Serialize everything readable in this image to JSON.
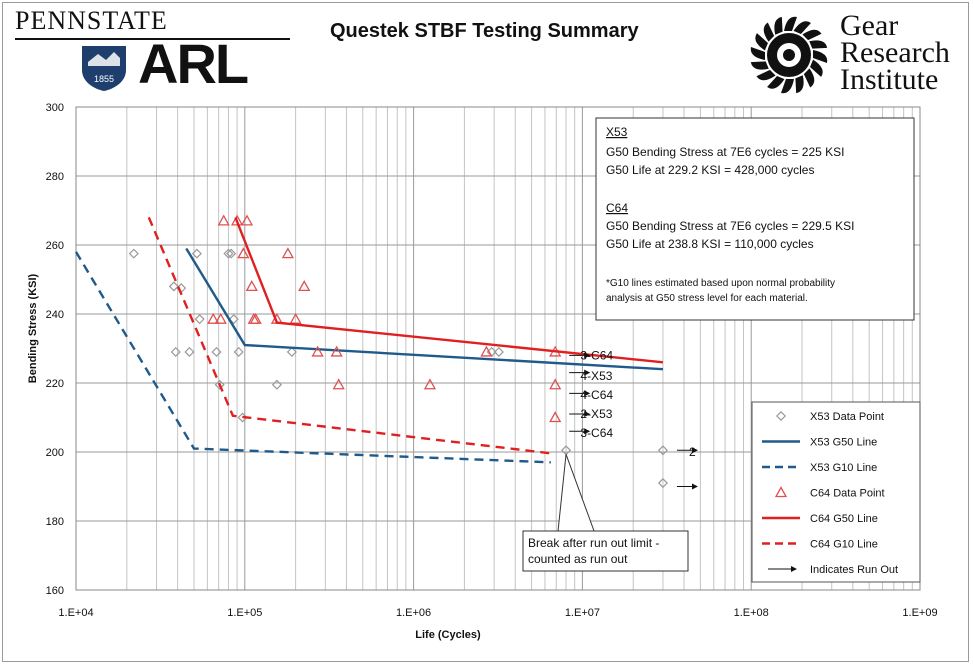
{
  "header": {
    "left_logo_top": "PENNSTATE",
    "left_logo_year": "1855",
    "left_logo_bottom": "ARL",
    "title": "Questek STBF Testing Summary",
    "right_logo_line1": "Gear",
    "right_logo_line2": "Research",
    "right_logo_line3": "Institute"
  },
  "chart_data": {
    "type": "scatter",
    "title": "Questek STBF Testing Summary",
    "xlabel": "Life (Cycles)",
    "ylabel": "Bending Stress (KSI)",
    "xscale": "log",
    "xlim": [
      10000,
      1000000000
    ],
    "ylim": [
      160,
      300
    ],
    "xticks": [
      10000,
      100000,
      1000000,
      10000000,
      100000000,
      1000000000
    ],
    "xtick_labels": [
      "1.E+04",
      "1.E+05",
      "1.E+06",
      "1.E+07",
      "1.E+08",
      "1.E+09"
    ],
    "yticks": [
      160,
      180,
      200,
      220,
      240,
      260,
      280,
      300
    ],
    "ytick_labels": [
      "160",
      "180",
      "200",
      "220",
      "240",
      "260",
      "280",
      "300"
    ],
    "grid": true,
    "legend_position": "bottom-right",
    "legend": [
      {
        "label": "X53 Data Point",
        "kind": "diamond",
        "color": "#999999"
      },
      {
        "label": "X53 G50 Line",
        "kind": "solid",
        "color": "#1f5a8a"
      },
      {
        "label": "X53 G10 Line",
        "kind": "dashed",
        "color": "#1f5a8a"
      },
      {
        "label": "C64 Data Point",
        "kind": "triangle",
        "color": "#e05050"
      },
      {
        "label": "C64 G50 Line",
        "kind": "solid",
        "color": "#e02020"
      },
      {
        "label": "C64 G10 Line",
        "kind": "dashed",
        "color": "#e02020"
      },
      {
        "label": "Indicates Run Out",
        "kind": "arrow",
        "color": "#111111"
      }
    ],
    "series": [
      {
        "name": "X53 Data Point",
        "kind": "diamond",
        "color": "#999999",
        "points": [
          [
            22000,
            257.5
          ],
          [
            38000,
            248
          ],
          [
            39000,
            229
          ],
          [
            42000,
            247.5
          ],
          [
            47000,
            229
          ],
          [
            52000,
            257.5
          ],
          [
            54000,
            238.5
          ],
          [
            68000,
            229
          ],
          [
            71000,
            219.5
          ],
          [
            80000,
            257.5
          ],
          [
            83000,
            257.5
          ],
          [
            86000,
            238.5
          ],
          [
            92000,
            229
          ],
          [
            97000,
            210
          ],
          [
            155000,
            219.5
          ],
          [
            190000,
            229
          ],
          [
            2900000,
            229
          ],
          [
            3200000,
            229
          ],
          [
            8000000,
            200.5
          ],
          [
            30000000,
            200.5
          ],
          [
            30000000,
            191
          ]
        ]
      },
      {
        "name": "X53 G50 Line",
        "kind": "solid",
        "color": "#1f5a8a",
        "points": [
          [
            45000,
            259
          ],
          [
            100000,
            231
          ],
          [
            30000000,
            224
          ]
        ]
      },
      {
        "name": "X53 G10 Line",
        "kind": "dashed",
        "color": "#1f5a8a",
        "points": [
          [
            10000,
            258
          ],
          [
            50000,
            201
          ],
          [
            6500000,
            197
          ]
        ]
      },
      {
        "name": "C64 Data Point",
        "kind": "triangle",
        "color": "#e05050",
        "points": [
          [
            65000,
            238.5
          ],
          [
            72000,
            238.5
          ],
          [
            75000,
            267
          ],
          [
            90000,
            267
          ],
          [
            98000,
            257.5
          ],
          [
            103000,
            267
          ],
          [
            110000,
            248
          ],
          [
            113000,
            238.5
          ],
          [
            116000,
            238.5
          ],
          [
            155000,
            238.5
          ],
          [
            180000,
            257.5
          ],
          [
            200000,
            238.5
          ],
          [
            225000,
            248
          ],
          [
            270000,
            229
          ],
          [
            350000,
            229
          ],
          [
            360000,
            219.5
          ],
          [
            1250000,
            219.5
          ],
          [
            2700000,
            229
          ],
          [
            6900000,
            229
          ],
          [
            6900000,
            219.5
          ],
          [
            6900000,
            210
          ]
        ]
      },
      {
        "name": "C64 G50 Line",
        "kind": "solid",
        "color": "#e02020",
        "points": [
          [
            88000,
            268
          ],
          [
            155000,
            237.5
          ],
          [
            30000000,
            226
          ]
        ]
      },
      {
        "name": "C64 G10 Line",
        "kind": "dashed",
        "color": "#e02020",
        "points": [
          [
            27000,
            268
          ],
          [
            85000,
            210.5
          ],
          [
            6800000,
            199.5
          ]
        ]
      },
      {
        "name": "Indicates Run Out",
        "kind": "arrow",
        "color": "#111111",
        "points": [
          [
            6900000,
            228
          ],
          [
            6900000,
            223
          ],
          [
            6900000,
            217
          ],
          [
            6900000,
            211
          ],
          [
            6900000,
            206
          ],
          [
            30000000,
            200.5
          ],
          [
            30000000,
            190
          ]
        ]
      }
    ],
    "runout_labels": [
      {
        "text": "3-C64",
        "x": 10000000,
        "y": 228
      },
      {
        "text": "4-X53",
        "x": 10000000,
        "y": 222
      },
      {
        "text": "4-C64",
        "x": 10000000,
        "y": 216.5
      },
      {
        "text": "2-X53",
        "x": 10000000,
        "y": 211
      },
      {
        "text": "3-C64",
        "x": 10000000,
        "y": 205.5
      },
      {
        "text": "2",
        "x": 44000000,
        "y": 200
      }
    ],
    "annotation_box": {
      "x53_heading": "X53",
      "x53_line1": "G50 Bending Stress at 7E6 cycles = 225 KSI",
      "x53_line2": "G50 Life at 229.2 KSI = 428,000 cycles",
      "c64_heading": "C64",
      "c64_line1": "G50 Bending Stress at 7E6 cycles = 229.5 KSI",
      "c64_line2": "G50 Life at 238.8 KSI = 110,000 cycles",
      "note_line1": "*G10 lines estimated based upon normal probability",
      "note_line2": "analysis at G50 stress level for each material."
    },
    "callout": {
      "line1": "Break after run out limit -",
      "line2": "counted as run out",
      "target_x": 8000000,
      "target_y": 200.5
    }
  }
}
